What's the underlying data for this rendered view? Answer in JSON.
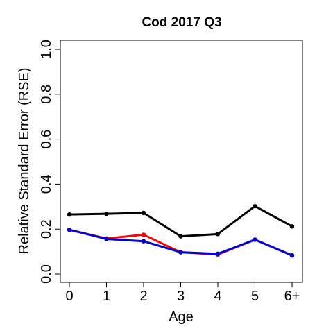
{
  "chart_data": {
    "type": "line",
    "title": "Cod 2017 Q3",
    "xlabel": "Age",
    "ylabel": "Relative Standard Error (RSE)",
    "categories": [
      "0",
      "1",
      "2",
      "3",
      "4",
      "5",
      "6+"
    ],
    "ylim": [
      0,
      1
    ],
    "yticks": [
      "0.0",
      "0.2",
      "0.4",
      "0.6",
      "0.8",
      "1.0"
    ],
    "grid": false,
    "series": [
      {
        "color": "#000000",
        "values": [
          0.265,
          0.268,
          0.272,
          0.168,
          0.178,
          0.302,
          0.212
        ]
      },
      {
        "color": "#ff0000",
        "values": [
          0.197,
          0.158,
          0.175,
          0.097,
          0.087,
          0.153,
          0.083
        ]
      },
      {
        "color": "#0000cd",
        "values": [
          0.197,
          0.156,
          0.146,
          0.097,
          0.09,
          0.153,
          0.083
        ]
      }
    ]
  }
}
